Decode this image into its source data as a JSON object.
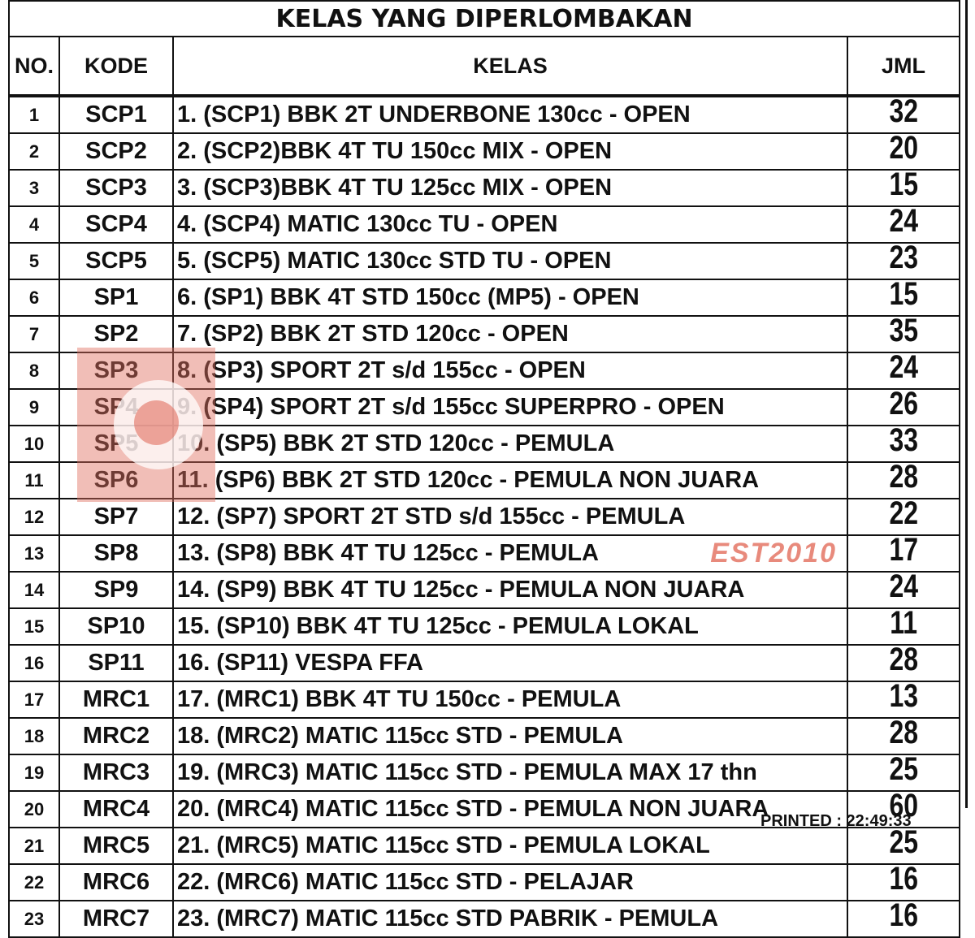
{
  "title": "KELAS YANG DIPERLOMBAKAN",
  "headers": {
    "no": "NO.",
    "kode": "KODE",
    "kelas": "KELAS",
    "jml": "JML"
  },
  "rows": [
    {
      "no": "1",
      "kode": "SCP1",
      "kelas": "1. (SCP1) BBK 2T UNDERBONE 130cc - OPEN",
      "jml": "32"
    },
    {
      "no": "2",
      "kode": "SCP2",
      "kelas": "2. (SCP2)BBK 4T TU 150cc MIX - OPEN",
      "jml": "20"
    },
    {
      "no": "3",
      "kode": "SCP3",
      "kelas": "3. (SCP3)BBK 4T TU 125cc MIX - OPEN",
      "jml": "15"
    },
    {
      "no": "4",
      "kode": "SCP4",
      "kelas": "4. (SCP4) MATIC 130cc TU - OPEN",
      "jml": "24"
    },
    {
      "no": "5",
      "kode": "SCP5",
      "kelas": "5. (SCP5) MATIC 130cc STD TU - OPEN",
      "jml": "23"
    },
    {
      "no": "6",
      "kode": "SP1",
      "kelas": "6. (SP1) BBK 4T STD 150cc (MP5) - OPEN",
      "jml": "15"
    },
    {
      "no": "7",
      "kode": "SP2",
      "kelas": "7. (SP2) BBK 2T STD 120cc - OPEN",
      "jml": "35"
    },
    {
      "no": "8",
      "kode": "SP3",
      "kelas": "8. (SP3) SPORT 2T s/d 155cc - OPEN",
      "jml": "24"
    },
    {
      "no": "9",
      "kode": "SP4",
      "kelas": "9. (SP4) SPORT 2T s/d 155cc SUPERPRO - OPEN",
      "jml": "26"
    },
    {
      "no": "10",
      "kode": "SP5",
      "kelas": "10. (SP5) BBK 2T STD 120cc - PEMULA",
      "jml": "33"
    },
    {
      "no": "11",
      "kode": "SP6",
      "kelas": "11. (SP6) BBK 2T STD 120cc - PEMULA NON JUARA",
      "jml": "28"
    },
    {
      "no": "12",
      "kode": "SP7",
      "kelas": "12. (SP7) SPORT 2T STD s/d 155cc - PEMULA",
      "jml": "22"
    },
    {
      "no": "13",
      "kode": "SP8",
      "kelas": "13. (SP8) BBK 4T TU 125cc - PEMULA",
      "jml": "17"
    },
    {
      "no": "14",
      "kode": "SP9",
      "kelas": "14. (SP9) BBK 4T TU 125cc - PEMULA NON JUARA",
      "jml": "24"
    },
    {
      "no": "15",
      "kode": "SP10",
      "kelas": "15. (SP10) BBK 4T TU 125cc - PEMULA LOKAL",
      "jml": "11"
    },
    {
      "no": "16",
      "kode": "SP11",
      "kelas": "16. (SP11) VESPA FFA",
      "jml": "28"
    },
    {
      "no": "17",
      "kode": "MRC1",
      "kelas": "17. (MRC1) BBK 4T TU 150cc - PEMULA",
      "jml": "13"
    },
    {
      "no": "18",
      "kode": "MRC2",
      "kelas": "18. (MRC2) MATIC 115cc STD - PEMULA",
      "jml": "28"
    },
    {
      "no": "19",
      "kode": "MRC3",
      "kelas": "19. (MRC3) MATIC 115cc STD - PEMULA MAX 17 thn",
      "jml": "25"
    },
    {
      "no": "20",
      "kode": "MRC4",
      "kelas": "20. (MRC4) MATIC 115cc STD - PEMULA NON JUARA",
      "jml": "60"
    },
    {
      "no": "21",
      "kode": "MRC5",
      "kelas": "21. (MRC5) MATIC 115cc STD - PEMULA LOKAL",
      "jml": "25"
    },
    {
      "no": "22",
      "kode": "MRC6",
      "kelas": "22. (MRC6) MATIC 115cc STD - PELAJAR",
      "jml": "16"
    },
    {
      "no": "23",
      "kode": "MRC7",
      "kelas": "23. (MRC7) MATIC 115cc STD PABRIK - PEMULA",
      "jml": "16"
    }
  ],
  "printed": "PRINTED : 22:49:33",
  "watermark": {
    "text": "EST2010",
    "color": "#e06a5a"
  }
}
